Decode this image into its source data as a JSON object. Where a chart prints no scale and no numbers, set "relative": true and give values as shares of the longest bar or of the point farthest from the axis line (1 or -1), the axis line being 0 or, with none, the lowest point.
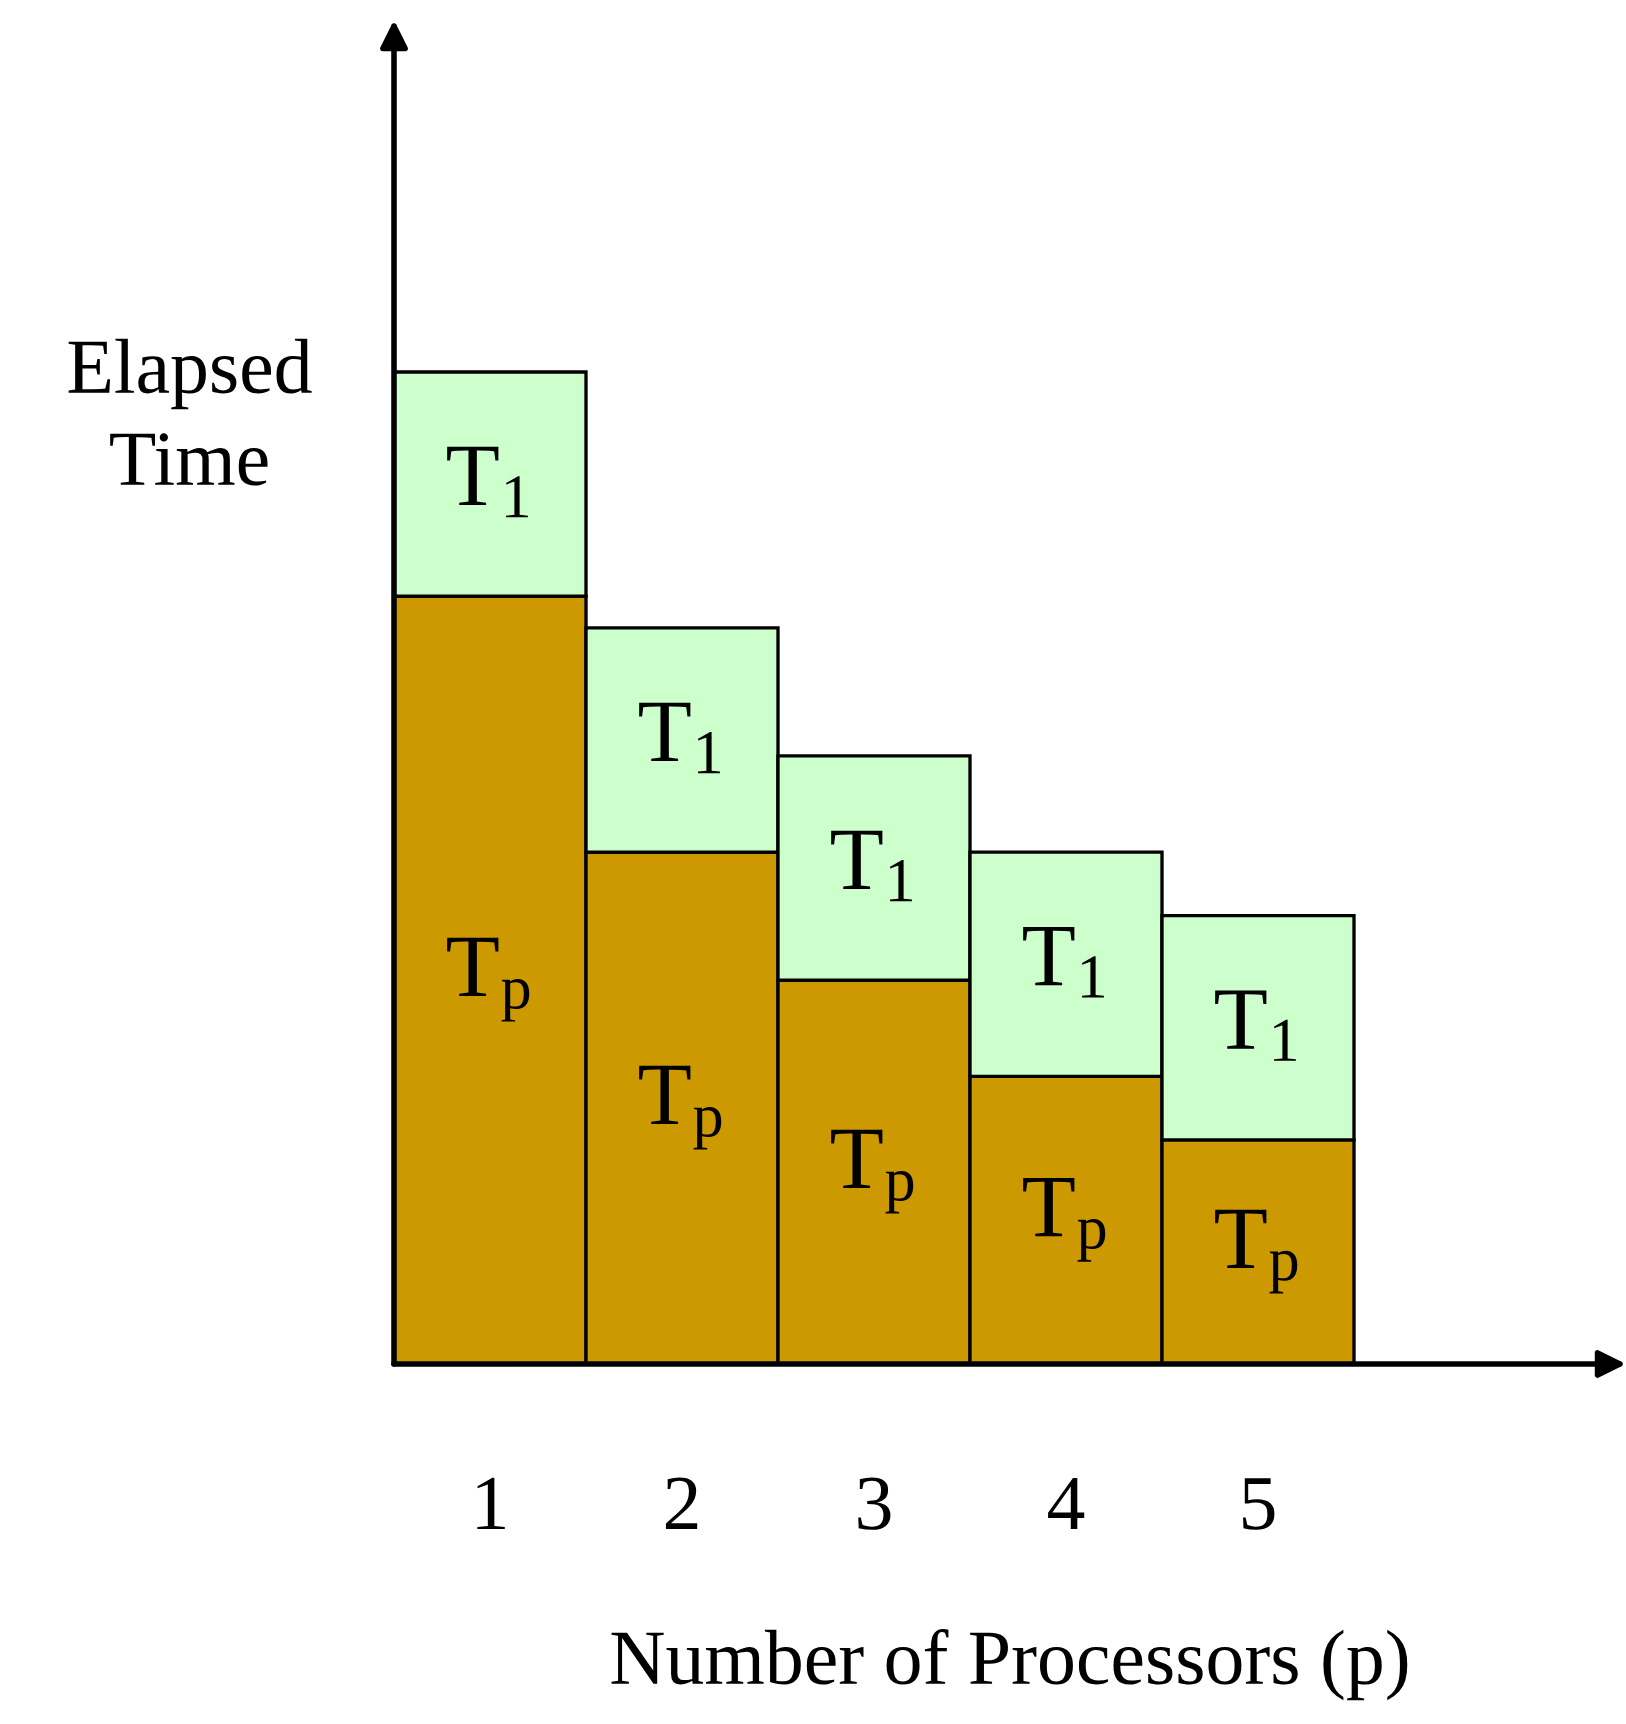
{
  "chart_data": {
    "type": "bar",
    "stacked": true,
    "relative": true,
    "xlabel": "Number of Processors (p)",
    "ylabel": "Elapsed\nTime",
    "categories": [
      "1",
      "2",
      "3",
      "4",
      "5"
    ],
    "series": [
      {
        "name": "T$_{p}$",
        "color": "#cc9900",
        "values": [
          0.774,
          0.516,
          0.387,
          0.29,
          0.226
        ]
      },
      {
        "name": "T$_{1}$",
        "color": "#ccffcc",
        "values": [
          0.226,
          0.226,
          0.226,
          0.226,
          0.226
        ]
      }
    ]
  }
}
